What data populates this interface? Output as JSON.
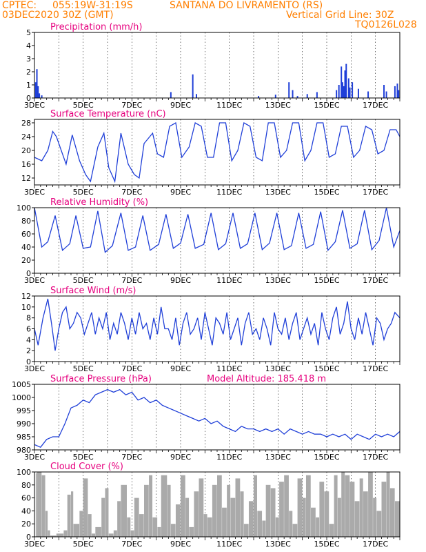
{
  "header": {
    "source": "CPTEC:",
    "coords": "055:19W-31:19S",
    "location": "SANTANA DO LIVRAMENTO (RS)",
    "run": "03DEC2020 30Z (GMT)",
    "grid_note": "Vertical Grid Line: 30Z",
    "code": "TQ0126L028"
  },
  "x_ticks": [
    "3DEC",
    "5DEC",
    "7DEC",
    "9DEC",
    "11DEC",
    "13DEC",
    "15DEC",
    "17DEC"
  ],
  "colors": {
    "line": "#1f3fd8",
    "bars": "#1f3fd8",
    "cloud": "#aaaaaa",
    "title": "#e6007e",
    "header": "#ff7f00"
  },
  "chart_data": [
    {
      "type": "bar",
      "title": "Precipitation (mm/h)",
      "ylim": [
        0,
        5
      ],
      "yticks": [
        0,
        1,
        2,
        3,
        4,
        5
      ],
      "xlim": [
        0,
        15
      ],
      "events": [
        [
          0.05,
          1.2
        ],
        [
          0.1,
          2.2
        ],
        [
          0.15,
          0.9
        ],
        [
          0.2,
          0.35
        ],
        [
          0.3,
          0.2
        ],
        [
          5.6,
          0.45
        ],
        [
          6.5,
          1.8
        ],
        [
          6.65,
          0.3
        ],
        [
          9.2,
          0.15
        ],
        [
          9.9,
          0.25
        ],
        [
          10.45,
          1.2
        ],
        [
          10.6,
          0.6
        ],
        [
          10.8,
          0.15
        ],
        [
          11.2,
          0.3
        ],
        [
          11.6,
          0.45
        ],
        [
          12.4,
          0.6
        ],
        [
          12.5,
          1.0
        ],
        [
          12.6,
          2.4
        ],
        [
          12.65,
          1.2
        ],
        [
          12.7,
          0.9
        ],
        [
          12.75,
          2.1
        ],
        [
          12.8,
          2.6
        ],
        [
          12.9,
          1.5
        ],
        [
          12.95,
          0.8
        ],
        [
          13.05,
          1.2
        ],
        [
          13.3,
          0.7
        ],
        [
          13.7,
          0.5
        ],
        [
          14.35,
          1.0
        ],
        [
          14.45,
          0.5
        ],
        [
          14.8,
          0.9
        ],
        [
          14.9,
          1.1
        ],
        [
          14.95,
          0.6
        ]
      ]
    },
    {
      "type": "line",
      "title": "Surface Temperature (nC)",
      "ylim": [
        10,
        29
      ],
      "yticks": [
        12,
        16,
        20,
        24,
        28
      ],
      "xlim": [
        0,
        15
      ],
      "x": [
        0,
        0.3,
        0.55,
        0.75,
        0.9,
        1.3,
        1.55,
        1.85,
        2.1,
        2.3,
        2.6,
        2.85,
        3.05,
        3.3,
        3.55,
        3.85,
        4.1,
        4.3,
        4.5,
        4.85,
        5.05,
        5.3,
        5.55,
        5.8,
        6.05,
        6.35,
        6.6,
        6.85,
        7.1,
        7.35,
        7.6,
        7.85,
        8.1,
        8.35,
        8.6,
        8.85,
        9.1,
        9.35,
        9.6,
        9.85,
        10.1,
        10.35,
        10.6,
        10.85,
        11.1,
        11.35,
        11.6,
        11.85,
        12.1,
        12.35,
        12.6,
        12.85,
        13.1,
        13.35,
        13.6,
        13.85,
        14.1,
        14.35,
        14.6,
        14.85,
        15.0
      ],
      "values": [
        18,
        17,
        20,
        25.5,
        24,
        16,
        24.5,
        17,
        13,
        11,
        21,
        25,
        15,
        11,
        25,
        16,
        13,
        12,
        22,
        25,
        19,
        18,
        27,
        28,
        18,
        21,
        28,
        27,
        18,
        18,
        28,
        28,
        17,
        20,
        28,
        27,
        18,
        17,
        28,
        28,
        18,
        20,
        28,
        28,
        17,
        20,
        28,
        28,
        18,
        19,
        27,
        27,
        18,
        20,
        27,
        26,
        19,
        20,
        26,
        26,
        24
      ]
    },
    {
      "type": "line",
      "title": "Relative Humidity (%)",
      "ylim": [
        0,
        100
      ],
      "yticks": [
        0,
        20,
        40,
        60,
        80,
        100
      ],
      "xlim": [
        0,
        15
      ],
      "x": [
        0,
        0.3,
        0.55,
        0.85,
        1.15,
        1.45,
        1.7,
        2.0,
        2.3,
        2.6,
        2.9,
        3.2,
        3.55,
        3.85,
        4.15,
        4.45,
        4.75,
        5.1,
        5.4,
        5.7,
        6.0,
        6.3,
        6.6,
        6.95,
        7.25,
        7.55,
        7.85,
        8.15,
        8.45,
        8.75,
        9.05,
        9.35,
        9.65,
        9.95,
        10.25,
        10.55,
        10.85,
        11.15,
        11.45,
        11.75,
        12.05,
        12.35,
        12.65,
        12.95,
        13.25,
        13.55,
        13.85,
        14.15,
        14.45,
        14.75,
        15.0
      ],
      "values": [
        100,
        40,
        48,
        88,
        35,
        45,
        88,
        38,
        40,
        95,
        32,
        42,
        92,
        35,
        40,
        88,
        35,
        44,
        90,
        38,
        46,
        90,
        38,
        44,
        92,
        36,
        45,
        92,
        38,
        45,
        92,
        36,
        46,
        92,
        36,
        42,
        92,
        38,
        44,
        94,
        35,
        48,
        96,
        38,
        45,
        96,
        36,
        50,
        100,
        40,
        65
      ]
    },
    {
      "type": "line",
      "title": "Surface Wind (m/s)",
      "ylim": [
        0,
        12
      ],
      "yticks": [
        0,
        2,
        4,
        6,
        8,
        10,
        12
      ],
      "xlim": [
        0,
        15
      ],
      "x": [
        0,
        0.15,
        0.35,
        0.55,
        0.7,
        0.85,
        1.0,
        1.15,
        1.3,
        1.45,
        1.6,
        1.75,
        1.9,
        2.05,
        2.2,
        2.35,
        2.5,
        2.65,
        2.8,
        2.95,
        3.1,
        3.25,
        3.4,
        3.55,
        3.7,
        3.85,
        4.0,
        4.15,
        4.3,
        4.45,
        4.6,
        4.75,
        4.9,
        5.05,
        5.2,
        5.35,
        5.5,
        5.65,
        5.8,
        5.95,
        6.1,
        6.25,
        6.4,
        6.55,
        6.7,
        6.85,
        7.0,
        7.15,
        7.3,
        7.45,
        7.6,
        7.75,
        7.9,
        8.05,
        8.2,
        8.35,
        8.5,
        8.65,
        8.8,
        8.95,
        9.1,
        9.25,
        9.4,
        9.55,
        9.7,
        9.85,
        10.0,
        10.15,
        10.3,
        10.45,
        10.6,
        10.75,
        10.9,
        11.05,
        11.2,
        11.35,
        11.5,
        11.65,
        11.8,
        11.95,
        12.1,
        12.25,
        12.4,
        12.55,
        12.7,
        12.85,
        13.0,
        13.15,
        13.3,
        13.45,
        13.6,
        13.75,
        13.9,
        14.05,
        14.2,
        14.35,
        14.5,
        14.65,
        14.8,
        15.0
      ],
      "values": [
        6,
        3,
        8,
        11.5,
        7,
        2,
        6,
        9,
        10,
        6,
        7,
        9,
        8,
        5,
        7,
        9,
        5,
        8,
        6,
        9,
        4,
        7,
        5,
        9,
        7,
        4,
        8,
        5,
        9,
        6,
        7,
        4,
        8,
        5,
        10,
        6,
        6,
        4,
        8,
        3,
        7,
        9,
        5,
        6,
        8,
        4,
        9,
        6,
        3,
        8,
        7,
        5,
        9,
        4,
        6,
        8,
        3,
        7,
        9,
        5,
        6,
        4,
        8,
        6,
        3,
        9,
        6,
        5,
        8,
        4,
        7,
        9,
        4,
        6,
        8,
        5,
        7,
        3,
        9,
        6,
        4,
        8,
        10,
        5,
        7,
        11,
        6,
        4,
        8,
        5,
        9,
        6,
        3,
        8,
        7,
        4,
        6,
        7,
        9,
        8
      ]
    },
    {
      "type": "line",
      "title": "Surface Pressure (hPa)",
      "annotation": "Model Altitude: 185.418 m",
      "ylim": [
        980,
        1005
      ],
      "yticks": [
        980,
        985,
        990,
        995,
        1000,
        1005
      ],
      "xlim": [
        0,
        15
      ],
      "x": [
        0,
        0.25,
        0.5,
        0.75,
        1.0,
        1.25,
        1.5,
        1.75,
        2.0,
        2.25,
        2.5,
        2.75,
        3.0,
        3.25,
        3.5,
        3.75,
        4.0,
        4.25,
        4.5,
        4.75,
        5.0,
        5.25,
        5.5,
        5.75,
        6.0,
        6.25,
        6.5,
        6.75,
        7.0,
        7.25,
        7.5,
        7.75,
        8.0,
        8.25,
        8.5,
        8.75,
        9.0,
        9.25,
        9.5,
        9.75,
        10.0,
        10.25,
        10.5,
        10.75,
        11.0,
        11.25,
        11.5,
        11.75,
        12.0,
        12.25,
        12.5,
        12.75,
        13.0,
        13.25,
        13.5,
        13.75,
        14.0,
        14.25,
        14.5,
        14.75,
        15.0
      ],
      "values": [
        982,
        981,
        984,
        985,
        985,
        990,
        996,
        997,
        999,
        998,
        1001,
        1002,
        1003,
        1002,
        1003,
        1001,
        1002,
        999,
        1000,
        998,
        999,
        997,
        996,
        995,
        994,
        993,
        992,
        991,
        992,
        990,
        991,
        989,
        988,
        987,
        989,
        988,
        988,
        987,
        988,
        987,
        988,
        986,
        988,
        987,
        986,
        987,
        986,
        986,
        985,
        986,
        985,
        986,
        984,
        986,
        985,
        984,
        986,
        985,
        986,
        985,
        987
      ]
    },
    {
      "type": "area",
      "title": "Cloud Cover (%)",
      "ylim": [
        0,
        100
      ],
      "yticks": [
        0,
        20,
        40,
        60,
        80,
        100
      ],
      "xlim": [
        0,
        15
      ],
      "x": [
        0,
        0.05,
        0.1,
        0.3,
        0.45,
        0.55,
        0.65,
        0.9,
        1.2,
        1.35,
        1.5,
        1.6,
        1.85,
        2.0,
        2.2,
        2.35,
        2.5,
        2.75,
        2.9,
        3.05,
        3.25,
        3.4,
        3.55,
        3.8,
        3.95,
        4.1,
        4.3,
        4.5,
        4.7,
        4.85,
        5.05,
        5.2,
        5.45,
        5.6,
        5.8,
        6.0,
        6.2,
        6.35,
        6.55,
        6.75,
        6.95,
        7.1,
        7.3,
        7.5,
        7.7,
        7.9,
        8.05,
        8.25,
        8.45,
        8.6,
        8.8,
        9.0,
        9.15,
        9.35,
        9.5,
        9.7,
        9.9,
        10.05,
        10.25,
        10.45,
        10.6,
        10.8,
        11.0,
        11.15,
        11.35,
        11.55,
        11.7,
        11.9,
        12.1,
        12.3,
        12.45,
        12.6,
        12.75,
        12.95,
        13.15,
        13.35,
        13.5,
        13.7,
        13.9,
        14.05,
        14.25,
        14.45,
        14.6,
        14.8,
        15.0
      ],
      "values": [
        0,
        98,
        100,
        95,
        40,
        10,
        2,
        5,
        10,
        65,
        70,
        20,
        40,
        90,
        35,
        5,
        15,
        60,
        75,
        5,
        10,
        55,
        80,
        30,
        10,
        60,
        35,
        80,
        95,
        30,
        15,
        95,
        80,
        20,
        50,
        95,
        60,
        15,
        70,
        90,
        35,
        30,
        80,
        95,
        45,
        80,
        60,
        90,
        70,
        20,
        55,
        95,
        40,
        25,
        80,
        75,
        30,
        85,
        95,
        40,
        20,
        90,
        60,
        95,
        45,
        30,
        85,
        70,
        20,
        95,
        60,
        100,
        95,
        85,
        55,
        90,
        70,
        100,
        60,
        40,
        85,
        100,
        75,
        55,
        20
      ]
    }
  ]
}
